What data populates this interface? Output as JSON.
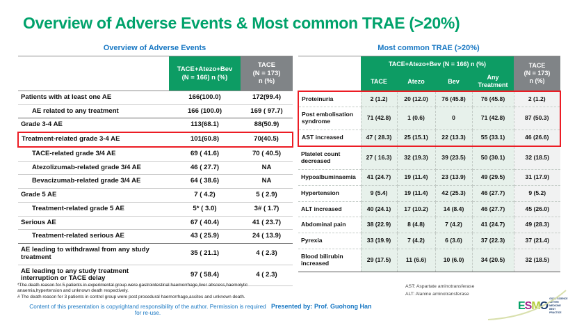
{
  "colors": {
    "title_green": "#00A26B",
    "header_green": "#0D9C64",
    "header_gray": "#808487",
    "blue": "#1777C3",
    "red": "#EC1C24",
    "body_green_tint": "#E7F1EB",
    "body_gray_tint": "#F1F2F2"
  },
  "slide": {
    "title": "Overview of Adverse Events & Most common TRAE (>20%)",
    "copyright": "Content of this presentation is copyrightand responsibility of the author. Permission is required for re-use.",
    "presented_by": "Presented by: Prof. Guohong Han"
  },
  "left_table": {
    "title": "Overview of Adverse Events",
    "headers": {
      "experimental": "TACE+Atezo+Bev\n(N = 166) n (%)",
      "control": "TACE\n(N = 173)\nn (%)"
    },
    "rows": [
      {
        "label": "Patients with at least one AE",
        "indent": 0,
        "v1": "166(100.0)",
        "v2": "172(99.4)"
      },
      {
        "label": "AE related to any treatment",
        "indent": 1,
        "v1": "166 (100.0)",
        "v2": "169 ( 97.7)",
        "group_end": true
      },
      {
        "label": "Grade 3-4 AE",
        "indent": 0,
        "v1": "113(68.1)",
        "v2": "88(50.9)"
      },
      {
        "label": "Treatment-related grade 3-4 AE",
        "indent": 0,
        "v1": "101(60.8)",
        "v2": "70(40.5)",
        "hl": "only"
      },
      {
        "label": "TACE-related grade 3/4 AE",
        "indent": 1,
        "v1": "69 ( 41.6)",
        "v2": "70 ( 40.5)"
      },
      {
        "label": "Atezolizumab-related grade 3/4 AE",
        "indent": 1,
        "v1": "46 ( 27.7)",
        "v2": "NA"
      },
      {
        "label": "Bevacizumab-related grade 3/4 AE",
        "indent": 1,
        "v1": "64 ( 38.6)",
        "v2": "NA"
      },
      {
        "label": "Grade 5 AE",
        "indent": 0,
        "v1": "7 ( 4.2)",
        "v2": "5 ( 2.9)"
      },
      {
        "label": "Treatment-related grade 5 AE",
        "indent": 1,
        "v1": "5* ( 3.0)",
        "v2": "3# ( 1.7)"
      },
      {
        "label": "Serious AE",
        "indent": 0,
        "v1": "67 ( 40.4)",
        "v2": "41 ( 23.7)"
      },
      {
        "label": "Treatment-related serious AE",
        "indent": 1,
        "v1": "43 ( 25.9)",
        "v2": "24 ( 13.9)",
        "group_end": true
      },
      {
        "label": "AE leading to withdrawal from any study treatment",
        "indent": 0,
        "v1": "35 ( 21.1)",
        "v2": "4 ( 2.3)"
      },
      {
        "label": "AE leading to any study treatment interruption or TACE delay",
        "indent": 0,
        "v1": "97 ( 58.4)",
        "v2": "4 ( 2.3)"
      }
    ],
    "footnotes": [
      "*The death reason for 5 patients in experimental group were gastrointestinal haemorrhage,liver abscess,haemolytic anaemia,hypertension and unknown death respectively.",
      "# The death reason for 3 patients in control group were post procedural haemorrhage,ascites and unknown death."
    ]
  },
  "right_table": {
    "title": "Most common TRAE (>20%)",
    "group_header": "TACE+Atezo+Bev (N = 166) n (%)",
    "sub_headers": [
      "TACE",
      "Atezo",
      "Bev",
      "Any\nTreatment"
    ],
    "control_header": "TACE\n(N = 173)\nn (%)",
    "rows": [
      {
        "label": "Proteinuria",
        "values": [
          "2 (1.2)",
          "20 (12.0)",
          "76 (45.8)",
          "76 (45.8)",
          "2 (1.2)"
        ],
        "hl": "top"
      },
      {
        "label": "Post embolisation syndrome",
        "values": [
          "71 (42.8)",
          "1 (0.6)",
          "0",
          "71 (42.8)",
          "87 (50.3)"
        ],
        "hl": "mid"
      },
      {
        "label": "AST increased",
        "values": [
          "47 ( 28.3)",
          "25 (15.1)",
          "22 (13.3)",
          "55 (33.1)",
          "46 (26.6)"
        ],
        "hl": "bottom"
      },
      {
        "label": "Platelet count decreased",
        "values": [
          "27 ( 16.3)",
          "32 (19.3)",
          "39 (23.5)",
          "50 (30.1)",
          "32 (18.5)"
        ]
      },
      {
        "label": "Hypoalbuminaemia",
        "values": [
          "41 (24.7)",
          "19 (11.4)",
          "23 (13.9)",
          "49 (29.5)",
          "31 (17.9)"
        ]
      },
      {
        "label": "Hypertension",
        "values": [
          "9 (5.4)",
          "19 (11.4)",
          "42 (25.3)",
          "46 (27.7)",
          "9 (5.2)"
        ]
      },
      {
        "label": "ALT increased",
        "values": [
          "40 (24.1)",
          "17 (10.2)",
          "14 (8.4)",
          "46 (27.7)",
          "45 (26.0)"
        ]
      },
      {
        "label": "Abdominal pain",
        "values": [
          "38 (22.9)",
          "8 (4.8)",
          "7 (4.2)",
          "41 (24.7)",
          "49 (28.3)"
        ]
      },
      {
        "label": "Pyrexia",
        "values": [
          "33 (19.9)",
          "7 (4.2)",
          "6 (3.6)",
          "37 (22.3)",
          "37 (21.4)"
        ]
      },
      {
        "label": "Blood bilirubin increased",
        "values": [
          "29 (17.5)",
          "11 (6.6)",
          "10 (6.0)",
          "34 (20.5)",
          "32 (18.5)"
        ]
      }
    ],
    "footnotes": [
      "AST: Aspartate aminotransferase",
      "ALT: Alanine aminotransferase"
    ]
  },
  "logo": {
    "letters": [
      {
        "ch": "E",
        "color": "#00A164"
      },
      {
        "ch": "S",
        "color": "#A3258C"
      },
      {
        "ch": "M",
        "color": "#B2CB38"
      },
      {
        "ch": "O",
        "color": "#1B3D6D"
      }
    ],
    "tagline": [
      "GOOD SCIENCE",
      "BETTER MEDICINE",
      "BEST PRACTICE"
    ]
  }
}
